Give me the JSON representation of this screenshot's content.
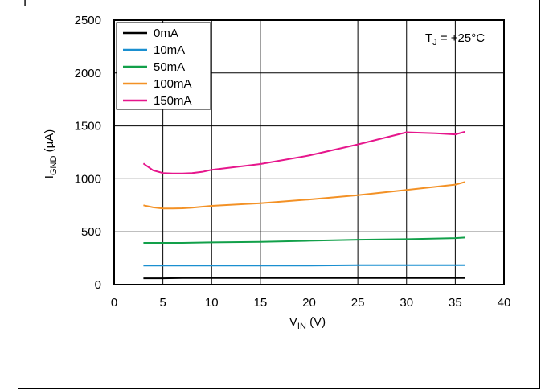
{
  "header_fragment": "I",
  "chart_data": {
    "type": "line",
    "xlabel": {
      "main": "V",
      "sub": "IN",
      "unit": " (V)"
    },
    "ylabel": {
      "main": "I",
      "sub": "GND",
      "unit": " (μA)"
    },
    "xlim": [
      0,
      40
    ],
    "ylim": [
      0,
      2500
    ],
    "x_ticks": [
      "0",
      "5",
      "10",
      "15",
      "20",
      "25",
      "30",
      "35",
      "40"
    ],
    "y_ticks": [
      "0",
      "500",
      "1000",
      "1500",
      "2000",
      "2500"
    ],
    "grid": true,
    "legend_position": "top-left",
    "annotation": {
      "main": "T",
      "sub": "J",
      "rest": " = +25°C"
    },
    "series": [
      {
        "name": "0mA",
        "color": "#000000",
        "x": [
          3,
          5,
          7,
          10,
          15,
          20,
          25,
          30,
          35,
          36
        ],
        "y": [
          60,
          60,
          62,
          62,
          62,
          62,
          62,
          62,
          62,
          62
        ]
      },
      {
        "name": "10mA",
        "color": "#1a8fd0",
        "x": [
          3,
          5,
          7,
          10,
          15,
          20,
          25,
          30,
          35,
          36
        ],
        "y": [
          180,
          180,
          180,
          180,
          180,
          180,
          185,
          185,
          185,
          185
        ]
      },
      {
        "name": "50mA",
        "color": "#12a04a",
        "x": [
          3,
          5,
          7,
          10,
          15,
          20,
          25,
          30,
          35,
          36
        ],
        "y": [
          395,
          395,
          395,
          400,
          405,
          415,
          425,
          430,
          440,
          445
        ]
      },
      {
        "name": "100mA",
        "color": "#f39125",
        "x": [
          3,
          4,
          5,
          6,
          7,
          8,
          10,
          15,
          20,
          25,
          30,
          35,
          36
        ],
        "y": [
          750,
          730,
          720,
          720,
          722,
          728,
          745,
          770,
          805,
          845,
          895,
          945,
          970
        ]
      },
      {
        "name": "150mA",
        "color": "#e6168c",
        "x": [
          3,
          4,
          5,
          6,
          7,
          8,
          9,
          10,
          15,
          20,
          25,
          30,
          33,
          35,
          36
        ],
        "y": [
          1145,
          1080,
          1055,
          1050,
          1050,
          1055,
          1065,
          1085,
          1140,
          1220,
          1325,
          1440,
          1430,
          1420,
          1445
        ]
      }
    ]
  }
}
